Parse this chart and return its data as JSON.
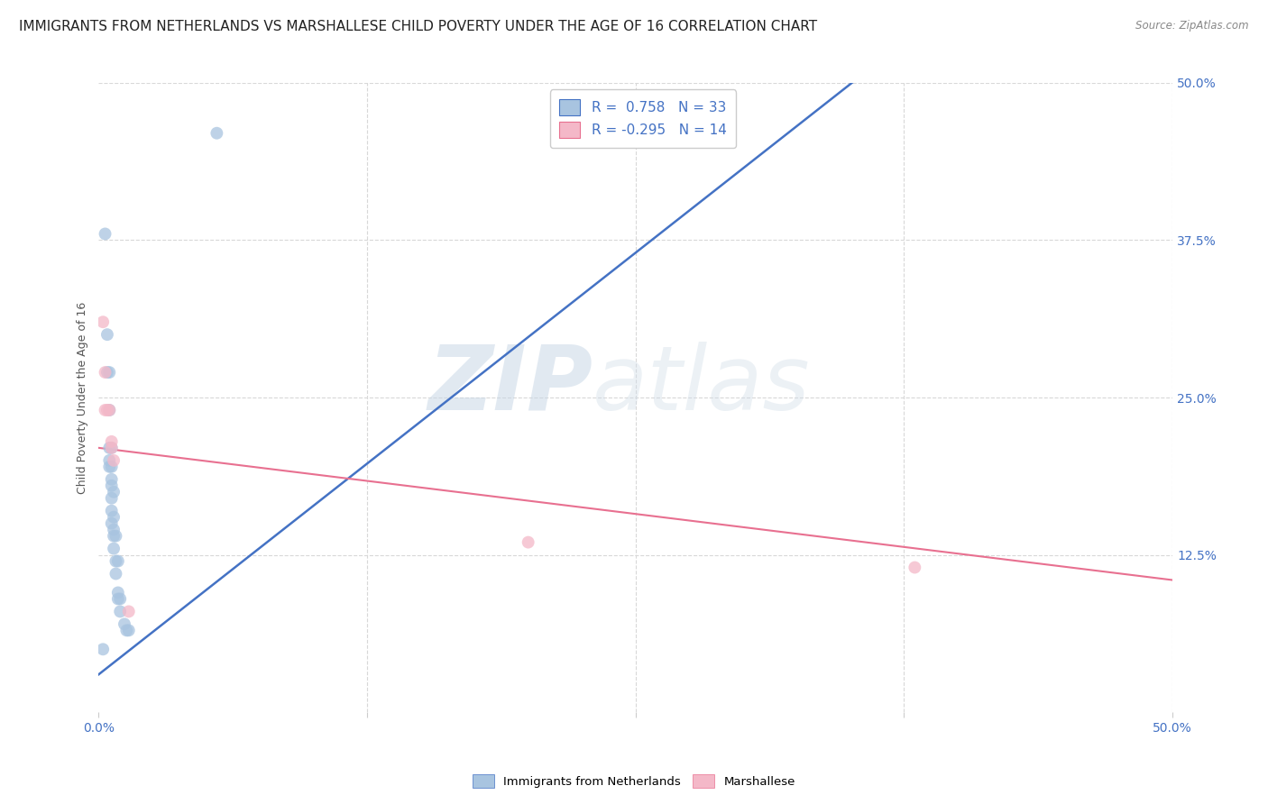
{
  "title": "IMMIGRANTS FROM NETHERLANDS VS MARSHALLESE CHILD POVERTY UNDER THE AGE OF 16 CORRELATION CHART",
  "source": "Source: ZipAtlas.com",
  "ylabel": "Child Poverty Under the Age of 16",
  "xlim": [
    0.0,
    0.5
  ],
  "ylim": [
    0.0,
    0.5
  ],
  "blue_scatter": [
    [
      0.002,
      0.05
    ],
    [
      0.003,
      0.38
    ],
    [
      0.004,
      0.3
    ],
    [
      0.004,
      0.27
    ],
    [
      0.005,
      0.27
    ],
    [
      0.005,
      0.24
    ],
    [
      0.005,
      0.21
    ],
    [
      0.005,
      0.2
    ],
    [
      0.005,
      0.195
    ],
    [
      0.006,
      0.21
    ],
    [
      0.006,
      0.195
    ],
    [
      0.006,
      0.185
    ],
    [
      0.006,
      0.18
    ],
    [
      0.006,
      0.17
    ],
    [
      0.006,
      0.16
    ],
    [
      0.006,
      0.15
    ],
    [
      0.007,
      0.175
    ],
    [
      0.007,
      0.155
    ],
    [
      0.007,
      0.145
    ],
    [
      0.007,
      0.14
    ],
    [
      0.007,
      0.13
    ],
    [
      0.008,
      0.14
    ],
    [
      0.008,
      0.12
    ],
    [
      0.008,
      0.11
    ],
    [
      0.009,
      0.12
    ],
    [
      0.009,
      0.095
    ],
    [
      0.009,
      0.09
    ],
    [
      0.01,
      0.09
    ],
    [
      0.01,
      0.08
    ],
    [
      0.012,
      0.07
    ],
    [
      0.013,
      0.065
    ],
    [
      0.014,
      0.065
    ],
    [
      0.055,
      0.46
    ]
  ],
  "pink_scatter": [
    [
      0.002,
      0.31
    ],
    [
      0.003,
      0.27
    ],
    [
      0.003,
      0.24
    ],
    [
      0.004,
      0.24
    ],
    [
      0.005,
      0.24
    ],
    [
      0.006,
      0.215
    ],
    [
      0.006,
      0.21
    ],
    [
      0.007,
      0.2
    ],
    [
      0.014,
      0.08
    ],
    [
      0.2,
      0.135
    ],
    [
      0.38,
      0.115
    ]
  ],
  "blue_line_x": [
    0.0,
    0.5
  ],
  "blue_line_y": [
    0.03,
    0.7
  ],
  "pink_line_x": [
    0.0,
    0.5
  ],
  "pink_line_y": [
    0.21,
    0.105
  ],
  "watermark_zip": "ZIP",
  "watermark_atlas": "atlas",
  "background_color": "#ffffff",
  "grid_color": "#d8d8d8",
  "blue_dot_color": "#a8c4e0",
  "pink_dot_color": "#f4b8c8",
  "blue_line_color": "#4472c4",
  "pink_line_color": "#e87090",
  "dot_size": 100,
  "dot_alpha": 0.75,
  "title_fontsize": 11,
  "axis_label_fontsize": 9,
  "tick_fontsize": 10,
  "legend_fontsize": 11
}
